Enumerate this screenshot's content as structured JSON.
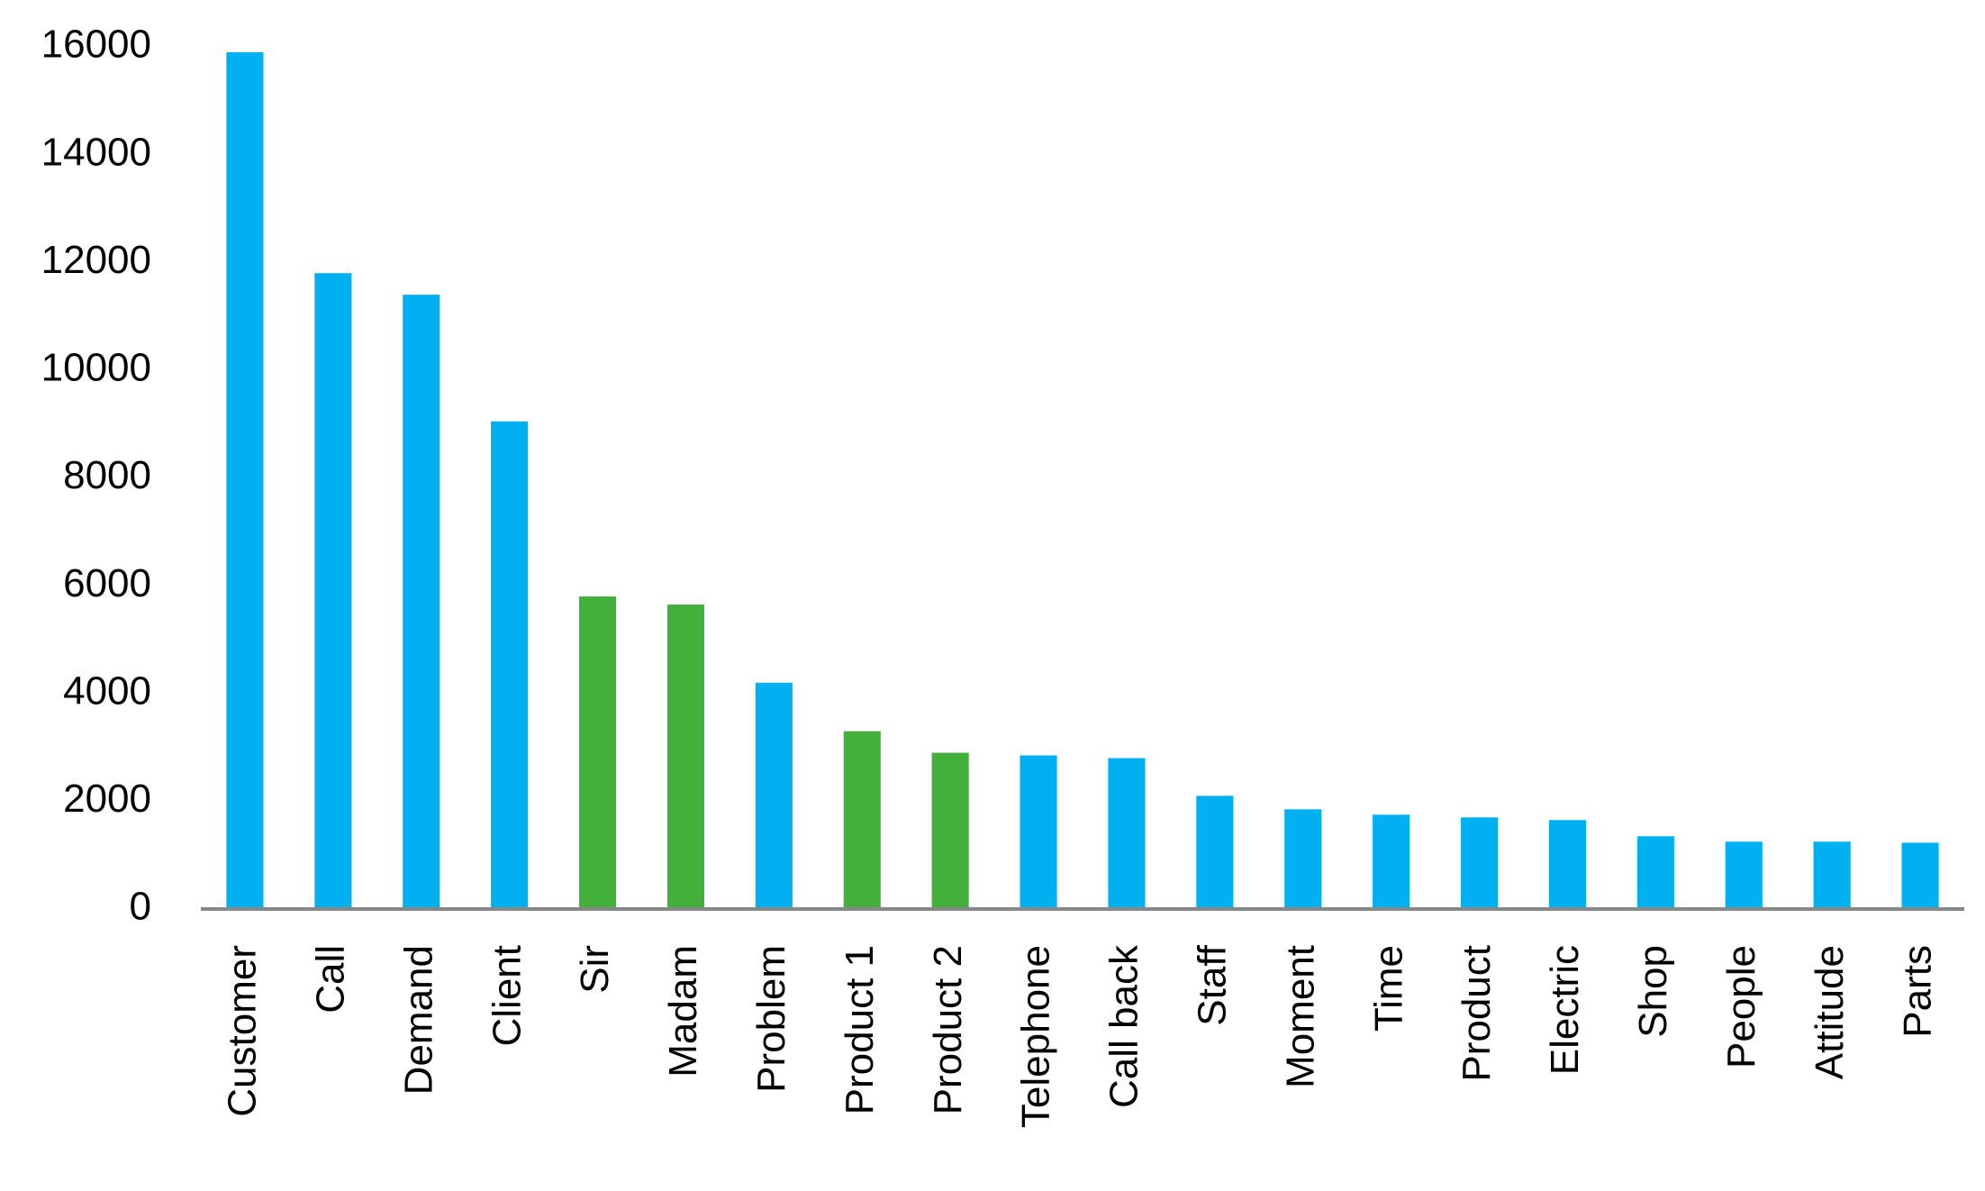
{
  "chart_data": {
    "type": "bar",
    "categories": [
      "Customer",
      "Call",
      "Demand",
      "Client",
      "Sir",
      "Madam",
      "Problem",
      "Product 1",
      "Product 2",
      "Telephone",
      "Call back",
      "Staff",
      "Moment",
      "Time",
      "Product",
      "Electric",
      "Shop",
      "People",
      "Attitude",
      "Parts"
    ],
    "values": [
      15900,
      11800,
      11400,
      9050,
      5800,
      5650,
      4200,
      3300,
      2900,
      2850,
      2800,
      2100,
      1850,
      1750,
      1700,
      1650,
      1350,
      1250,
      1250,
      1230
    ],
    "colors": [
      "#00b0f0",
      "#00b0f0",
      "#00b0f0",
      "#00b0f0",
      "#44b03c",
      "#44b03c",
      "#00b0f0",
      "#44b03c",
      "#44b03c",
      "#00b0f0",
      "#00b0f0",
      "#00b0f0",
      "#00b0f0",
      "#00b0f0",
      "#00b0f0",
      "#00b0f0",
      "#00b0f0",
      "#00b0f0",
      "#00b0f0",
      "#00b0f0"
    ],
    "ylim": [
      0,
      16000
    ],
    "yticks": [
      0,
      2000,
      4000,
      6000,
      8000,
      10000,
      12000,
      14000,
      16000
    ],
    "grid": false
  }
}
